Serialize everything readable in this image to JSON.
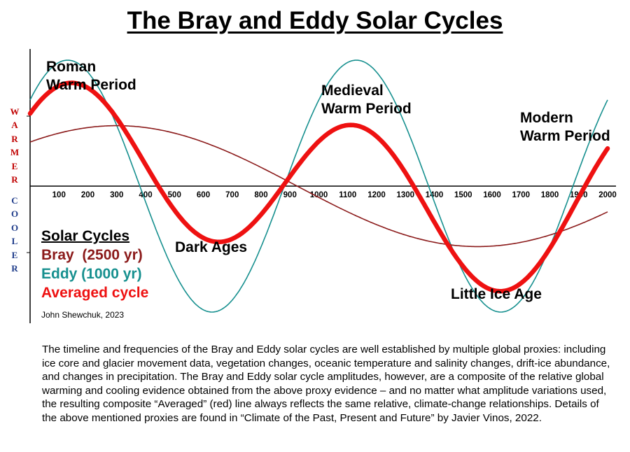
{
  "chart_data": {
    "type": "line",
    "title": "The Bray and Eddy Solar Cycles",
    "xlabel": "",
    "ylabel": "",
    "y_axis_labels": {
      "upper": "WARMER",
      "lower": "COOLER"
    },
    "x_ticks": [
      100,
      200,
      300,
      400,
      500,
      600,
      700,
      800,
      900,
      1000,
      1100,
      1200,
      1300,
      1400,
      1500,
      1600,
      1700,
      1800,
      1900,
      2000
    ],
    "x_ticks_display": [
      "100",
      "200",
      "300",
      "400",
      "500",
      "600",
      "700",
      "800",
      "900",
      "1000",
      "1100",
      "1200",
      "1300",
      "1400",
      "1500",
      "1600",
      "1700",
      "1800",
      "1900",
      "2000"
    ],
    "xlim": [
      0,
      2000
    ],
    "ylim": [
      -1,
      1
    ],
    "grid": false,
    "legend_position": "bottom-left",
    "legend_title": "Solar Cycles",
    "series": [
      {
        "name": "Bray  (2500 yr)",
        "color": "#8b1a1a",
        "period_years": 2500,
        "amplitude": 0.48,
        "peak_year": 300,
        "points": [
          [
            0,
            0.29
          ],
          [
            300,
            0.48
          ],
          [
            925,
            0.0
          ],
          [
            1550,
            -0.48
          ],
          [
            2000,
            -0.27
          ]
        ]
      },
      {
        "name": "Eddy (1000 yr)",
        "color": "#17908f",
        "period_years": 1000,
        "amplitude": 1.0,
        "peak_year": 130,
        "points": [
          [
            0,
            0.7
          ],
          [
            130,
            1.0
          ],
          [
            380,
            0.0
          ],
          [
            630,
            -1.0
          ],
          [
            880,
            0.0
          ],
          [
            1130,
            1.0
          ],
          [
            1380,
            0.0
          ],
          [
            1630,
            -1.0
          ],
          [
            1880,
            0.0
          ],
          [
            2000,
            0.7
          ]
        ]
      },
      {
        "name": "Averaged cycle",
        "color": "#ee1111",
        "points": [
          [
            0,
            0.5
          ],
          [
            150,
            0.72
          ],
          [
            630,
            -0.3
          ],
          [
            1100,
            0.44
          ],
          [
            1600,
            -0.72
          ],
          [
            2000,
            0.23
          ]
        ]
      }
    ],
    "annotations": [
      {
        "text": [
          "Roman",
          "Warm Period"
        ]
      },
      {
        "text": [
          "Medieval",
          "Warm Period"
        ]
      },
      {
        "text": [
          "Modern",
          "Warm Period"
        ]
      },
      {
        "text": [
          "Dark Ages"
        ]
      },
      {
        "text": [
          "Little Ice Age"
        ]
      }
    ]
  },
  "annotations": {
    "roman_1": "Roman",
    "roman_2": "Warm Period",
    "medieval_1": "Medieval",
    "medieval_2": "Warm Period",
    "modern_1": "Modern",
    "modern_2": "Warm Period",
    "dark_ages": "Dark Ages",
    "little_ice_age": "Little Ice Age"
  },
  "legend": {
    "title": "Solar Cycles",
    "bray": "Bray  (2500 yr)",
    "eddy": "Eddy (1000 yr)",
    "averaged": "Averaged cycle"
  },
  "credit": "John Shewchuk, 2023",
  "caption": "The timeline and frequencies of the Bray and Eddy solar cycles are well established by multiple global proxies: including ice core and glacier movement data, vegetation changes, oceanic temperature and salinity changes, drift-ice abundance, and changes in precipitation.  The Bray and Eddy solar cycle amplitudes, however, are a composite of the relative global warming and cooling evidence obtained from the above proxy evidence – and no matter what amplitude variations used, the resulting composite “Averaged” (red) line always reflects the same relative, climate-change relationships.  Details of the above mentioned proxies are found in “Climate of the Past, Present and Future” by Javier Vinos, 2022.",
  "colors": {
    "bray": "#8b1a1a",
    "eddy": "#17908f",
    "averaged": "#ee1111",
    "warmer": "#c00000",
    "cooler": "#1f3c8a"
  }
}
